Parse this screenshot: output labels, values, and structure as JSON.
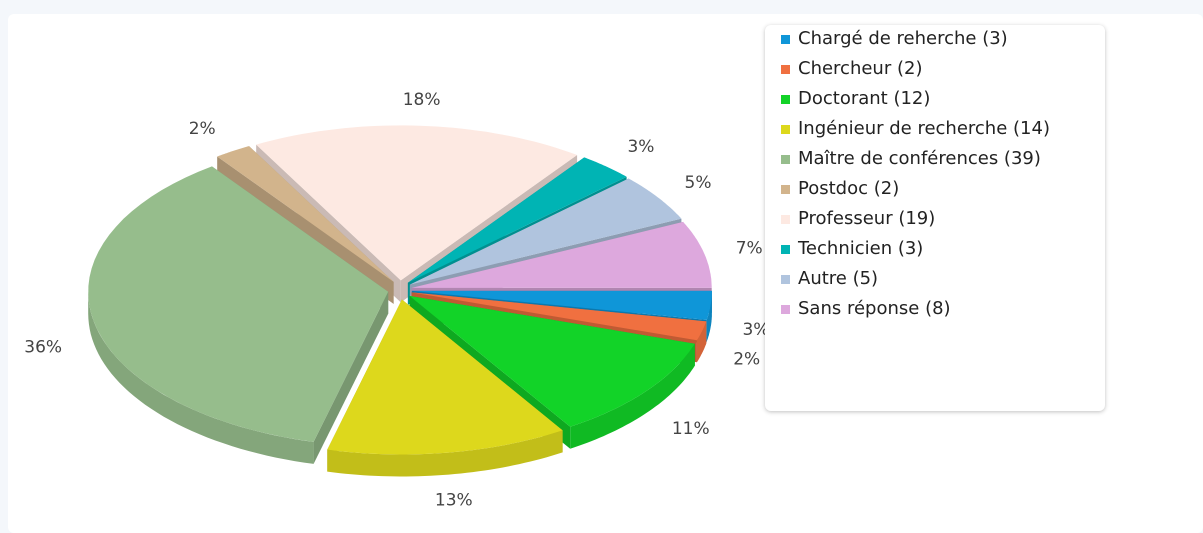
{
  "chart_data": {
    "type": "pie",
    "categories": [
      "Chargé de reherche (3)",
      "Chercheur (2)",
      "Doctorant (12)",
      "Ingénieur de recherche (14)",
      "Maître de conférences (39)",
      "Postdoc (2)",
      "Professeur (19)",
      "Technicien (3)",
      "Autre (5)",
      "Sans réponse (8)"
    ],
    "values": [
      3,
      2,
      11,
      13,
      36,
      2,
      18,
      3,
      5,
      7
    ],
    "value_labels": [
      "3%",
      "2%",
      "11%",
      "13%",
      "36%",
      "2%",
      "18%",
      "3%",
      "5%",
      "7%"
    ],
    "colors": [
      "#0f96d8",
      "#f07040",
      "#12d328",
      "#ddd81c",
      "#96bd8c",
      "#d2b48c",
      "#fde9e2",
      "#00b4b4",
      "#b0c4de",
      "#dda8dd"
    ],
    "legend": "right"
  }
}
